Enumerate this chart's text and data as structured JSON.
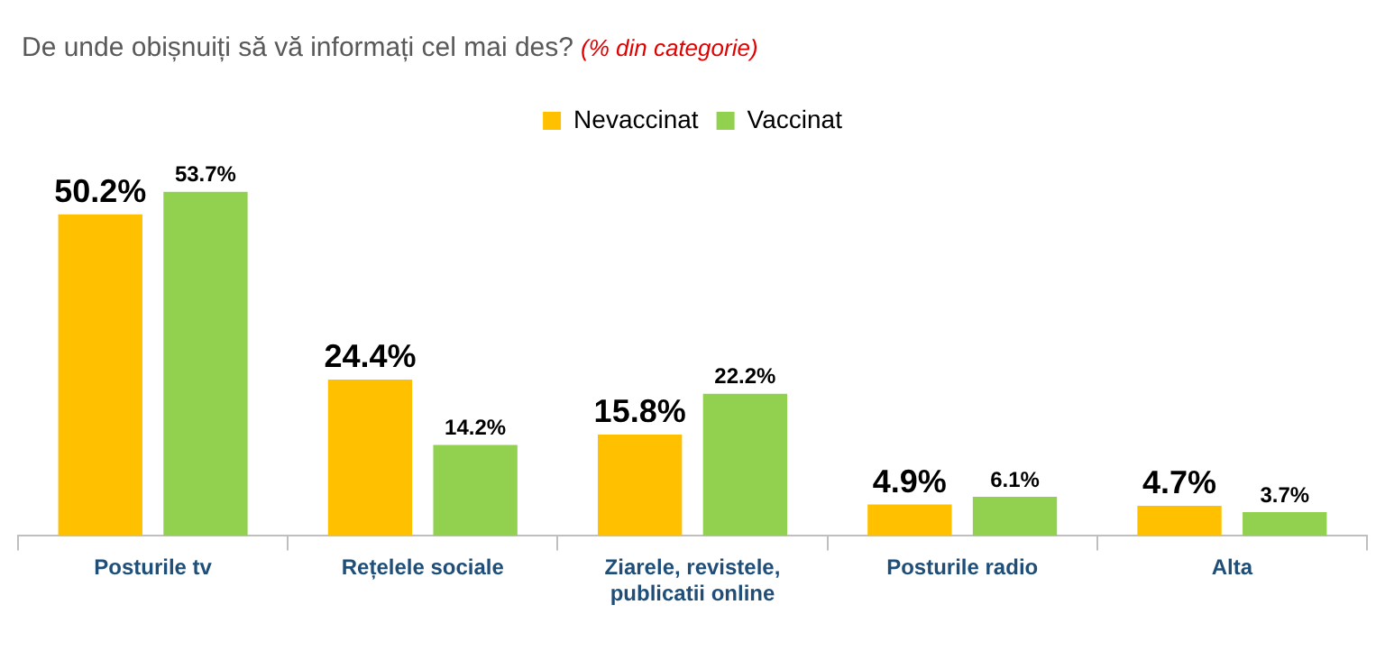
{
  "chart_data": {
    "type": "bar",
    "title": "De unde obișnuiți să vă informați cel mai des?",
    "subtitle": "(% din categorie)",
    "categories": [
      "Posturile tv",
      "Rețelele sociale",
      "Ziarele, revistele, publicatii online",
      "Posturile radio",
      "Alta"
    ],
    "series": [
      {
        "name": "Nevaccinat",
        "color": "#ffc000",
        "values": [
          50.2,
          24.4,
          15.8,
          4.9,
          4.7
        ],
        "value_labels": [
          "50.2%",
          "24.4%",
          "15.8%",
          "4.9%",
          "4.7%"
        ]
      },
      {
        "name": "Vaccinat",
        "color": "#92d050",
        "values": [
          53.7,
          14.2,
          22.2,
          6.1,
          3.7
        ],
        "value_labels": [
          "53.7%",
          "14.2%",
          "22.2%",
          "6.1%",
          "3.7%"
        ]
      }
    ],
    "legend": "top",
    "grid": false
  }
}
